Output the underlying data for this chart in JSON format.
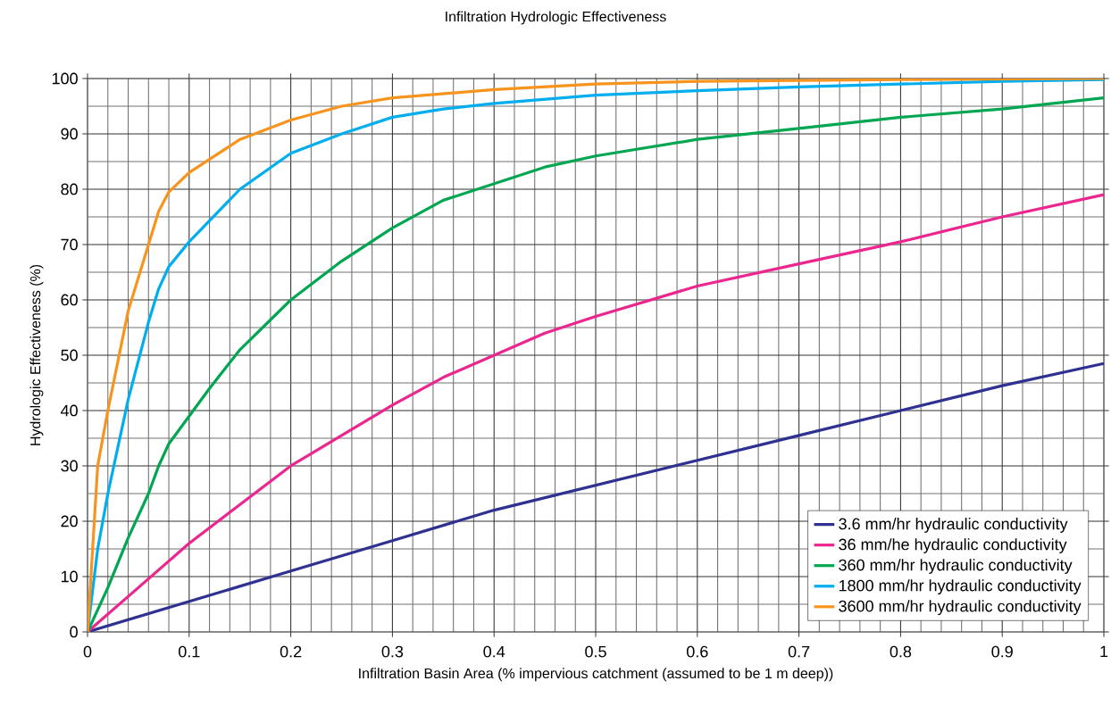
{
  "chart_data": {
    "type": "line",
    "title": "Infiltration Hydrologic Effectiveness",
    "xlabel": "Infiltration Basin Area (% impervious catchment (assumed to be 1 m deep))",
    "ylabel": "Hydrologic Effectiveness (%)",
    "xlim": [
      0,
      1
    ],
    "ylim": [
      0,
      100
    ],
    "xticks": [
      0,
      0.1,
      0.2,
      0.3,
      0.4,
      0.5,
      0.6,
      0.7,
      0.8,
      0.9,
      1
    ],
    "yticks": [
      0,
      10,
      20,
      30,
      40,
      50,
      60,
      70,
      80,
      90,
      100
    ],
    "grid": true,
    "legend": "bottom right",
    "line_style": "solid",
    "series": [
      {
        "name": "3.6 mm/hr hydraulic conductivity",
        "color": "#2e3192",
        "x": [
          0,
          0.1,
          0.2,
          0.3,
          0.4,
          0.5,
          0.6,
          0.7,
          0.8,
          0.9,
          1
        ],
        "values": [
          0,
          5.5,
          11,
          16.5,
          22,
          26.5,
          31,
          35.5,
          40,
          44.5,
          48.5
        ]
      },
      {
        "name": "36 mm/he hydraulic conductivity",
        "color": "#ec268f",
        "x": [
          0,
          0.05,
          0.1,
          0.15,
          0.2,
          0.25,
          0.3,
          0.35,
          0.4,
          0.45,
          0.5,
          0.6,
          0.7,
          0.8,
          0.9,
          1
        ],
        "values": [
          0,
          8,
          16,
          23,
          30,
          35.5,
          41,
          46,
          50,
          54,
          57,
          62.5,
          66.5,
          70.5,
          75,
          79
        ]
      },
      {
        "name": "360 mm/hr hydraulic conductivity",
        "color": "#00a651",
        "x": [
          0,
          0.02,
          0.04,
          0.06,
          0.07,
          0.08,
          0.1,
          0.12,
          0.15,
          0.2,
          0.25,
          0.3,
          0.35,
          0.4,
          0.45,
          0.5,
          0.6,
          0.7,
          0.8,
          0.9,
          1
        ],
        "values": [
          0,
          8,
          17,
          25,
          30,
          34,
          39,
          44,
          51,
          60,
          67,
          73,
          78,
          81,
          84,
          86,
          89,
          91,
          93,
          94.5,
          96.5
        ]
      },
      {
        "name": "1800 mm/hr hydraulic conductivity",
        "color": "#00aeef",
        "x": [
          0,
          0.01,
          0.02,
          0.04,
          0.06,
          0.07,
          0.08,
          0.1,
          0.15,
          0.2,
          0.25,
          0.3,
          0.35,
          0.4,
          0.5,
          0.6,
          0.7,
          0.8,
          0.9,
          1
        ],
        "values": [
          0,
          15,
          25,
          42,
          56,
          62,
          66,
          70.5,
          80,
          86.5,
          90,
          93,
          94.5,
          95.5,
          97,
          97.8,
          98.5,
          99,
          99.5,
          99.8
        ]
      },
      {
        "name": "3600 mm/hr hydraulic conductivity",
        "color": "#f7941d",
        "x": [
          0,
          0.01,
          0.02,
          0.04,
          0.06,
          0.07,
          0.08,
          0.1,
          0.15,
          0.2,
          0.25,
          0.3,
          0.4,
          0.5,
          0.6,
          0.8,
          1
        ],
        "values": [
          0,
          30,
          40,
          58,
          70,
          76,
          79.5,
          83,
          89,
          92.5,
          95,
          96.5,
          98,
          99,
          99.5,
          99.8,
          100
        ]
      }
    ]
  }
}
